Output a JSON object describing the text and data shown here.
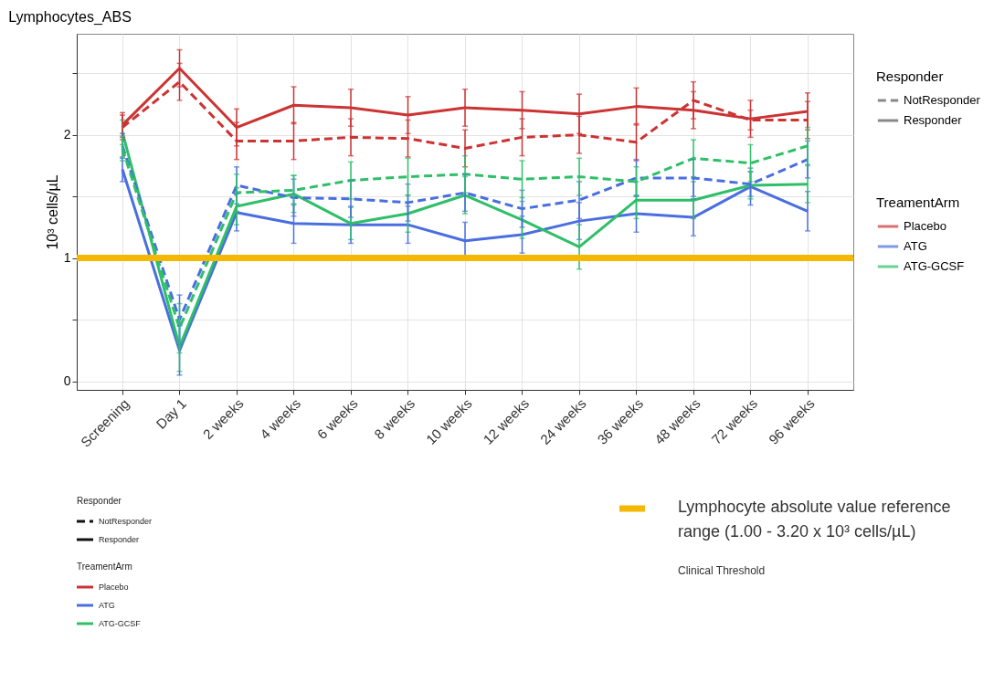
{
  "chart_data": {
    "type": "line",
    "title": "Lymphocytes_ABS",
    "ylabel": "10³ cells/µL",
    "legend": "right",
    "legend_title": "TreamentArm",
    "categories": [
      "Screening",
      "Day 1",
      "2 weeks",
      "4 weeks",
      "6 weeks",
      "8 weeks",
      "10 weeks",
      "12 weeks",
      "24 weeks",
      "36 weeks",
      "48 weeks",
      "72 weeks",
      "96 weeks"
    ],
    "ylim": [
      -0.07,
      2.82
    ],
    "yticks": [
      0,
      {
        "value": 0.5,
        "label": null
      },
      1,
      {
        "value": 1.5,
        "label": null
      },
      2,
      {
        "value": 2.5,
        "label": null
      }
    ],
    "grid": true,
    "series": [
      {
        "color": "#cc3333",
        "line_style": "dashed",
        "values": [
          2.06,
          2.43,
          1.95,
          1.95,
          1.98,
          1.97,
          1.89,
          1.98,
          2.0,
          1.94,
          2.28,
          2.12,
          2.12
        ],
        "errors": [
          0.1,
          0.15,
          0.15,
          0.15,
          0.15,
          0.15,
          0.15,
          0.15,
          0.15,
          0.15,
          0.15,
          0.08,
          0.15
        ]
      },
      {
        "name": "Placebo",
        "color": "#cc3333",
        "line_style": "solid",
        "values": [
          2.08,
          2.54,
          2.06,
          2.24,
          2.22,
          2.16,
          2.22,
          2.2,
          2.17,
          2.23,
          2.2,
          2.13,
          2.19
        ],
        "errors": [
          0.1,
          0.15,
          0.15,
          0.15,
          0.15,
          0.15,
          0.15,
          0.15,
          0.16,
          0.15,
          0.15,
          0.15,
          0.15
        ]
      },
      {
        "color": "#4a6ee0",
        "line_style": "dashed",
        "values": [
          1.91,
          0.5,
          1.59,
          1.49,
          1.48,
          1.45,
          1.53,
          1.4,
          1.47,
          1.65,
          1.65,
          1.6,
          1.8
        ],
        "errors": [
          0.1,
          0.2,
          0.15,
          0.15,
          0.15,
          0.15,
          0.15,
          0.15,
          0.15,
          0.15,
          0.15,
          0.1,
          0.15
        ]
      },
      {
        "name": "ATG",
        "color": "#4a6ee0",
        "line_style": "solid",
        "values": [
          1.72,
          0.25,
          1.37,
          1.28,
          1.27,
          1.27,
          1.14,
          1.19,
          1.3,
          1.36,
          1.33,
          1.58,
          1.38
        ],
        "errors": [
          0.1,
          0.2,
          0.15,
          0.16,
          0.15,
          0.15,
          0.15,
          0.15,
          0.15,
          0.15,
          0.15,
          0.15,
          0.16
        ]
      },
      {
        "color": "#2ebf68",
        "line_style": "dashed",
        "values": [
          1.89,
          0.43,
          1.53,
          1.55,
          1.63,
          1.66,
          1.68,
          1.64,
          1.66,
          1.62,
          1.81,
          1.77,
          1.91
        ],
        "errors": [
          0.1,
          0.2,
          0.15,
          0.12,
          0.15,
          0.15,
          0.15,
          0.15,
          0.15,
          0.12,
          0.15,
          0.15,
          0.15
        ]
      },
      {
        "name": "ATG-GCSF",
        "color": "#2ebf68",
        "line_style": "solid",
        "values": [
          2.02,
          0.28,
          1.42,
          1.52,
          1.28,
          1.36,
          1.51,
          1.31,
          1.09,
          1.47,
          1.47,
          1.59,
          1.6
        ],
        "errors": [
          0.1,
          0.2,
          0.15,
          0.15,
          0.13,
          0.15,
          0.15,
          0.15,
          0.18,
          0.15,
          0.15,
          0.11,
          0.15
        ]
      }
    ],
    "ref_lines": [
      {
        "axis": "y",
        "value": 1,
        "label": "Lymphocyte absolute value reference range (1.00 - 3.20 x 10³ cells/µL)",
        "color": "#f5b800"
      }
    ],
    "annotations": [
      "Responder",
      "NotResponder",
      "Responder",
      "Clinical Threshold"
    ]
  }
}
